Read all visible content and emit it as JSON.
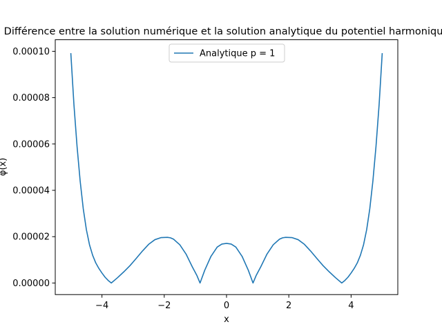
{
  "chart_data": {
    "type": "line",
    "title": "Différence entre la solution numérique et la solution analytique du potentiel harmonique",
    "xlabel": "x",
    "ylabel": "φ(x)",
    "xlim": [
      -5.5,
      5.5
    ],
    "ylim": [
      -5e-06,
      0.000105
    ],
    "xticks": [
      -4,
      -2,
      0,
      2,
      4
    ],
    "xtick_labels": [
      "−4",
      "−2",
      "0",
      "2",
      "4"
    ],
    "yticks": [
      0,
      2e-05,
      4e-05,
      6e-05,
      8e-05,
      0.0001
    ],
    "ytick_labels": [
      "0.00000",
      "0.00002",
      "0.00004",
      "0.00006",
      "0.00008",
      "0.00010"
    ],
    "grid": false,
    "legend_position": "upper center",
    "series": [
      {
        "name": "Analytique p = 1",
        "color": "#1f77b4",
        "x": [
          -5.0,
          -4.9,
          -4.8,
          -4.7,
          -4.6,
          -4.5,
          -4.4,
          -4.3,
          -4.2,
          -4.1,
          -4.0,
          -3.9,
          -3.8,
          -3.7,
          -3.5,
          -3.3,
          -3.1,
          -2.9,
          -2.7,
          -2.5,
          -2.3,
          -2.1,
          -1.9,
          -1.8,
          -1.7,
          -1.5,
          -1.3,
          -1.1,
          -0.95,
          -0.85,
          -0.7,
          -0.5,
          -0.3,
          -0.15,
          0.0,
          0.15,
          0.3,
          0.5,
          0.7,
          0.85,
          0.95,
          1.1,
          1.3,
          1.5,
          1.7,
          1.8,
          1.9,
          2.1,
          2.3,
          2.5,
          2.7,
          2.9,
          3.1,
          3.3,
          3.5,
          3.7,
          3.8,
          3.9,
          4.0,
          4.1,
          4.2,
          4.3,
          4.4,
          4.5,
          4.6,
          4.7,
          4.8,
          4.9,
          5.0
        ],
        "y": [
          9.92e-05,
          7.7e-05,
          5.9e-05,
          4.4e-05,
          3.2e-05,
          2.3e-05,
          1.65e-05,
          1.2e-05,
          8.7e-06,
          6.3e-06,
          4.3e-06,
          2.5e-06,
          1.1e-06,
          0.0,
          2.3e-06,
          4.8e-06,
          7.5e-06,
          1.06e-05,
          1.38e-05,
          1.67e-05,
          1.87e-05,
          1.96e-05,
          1.97e-05,
          1.95e-05,
          1.89e-05,
          1.65e-05,
          1.25e-05,
          7e-06,
          3.2e-06,
          0.0,
          5.5e-06,
          1.15e-05,
          1.55e-05,
          1.68e-05,
          1.71e-05,
          1.68e-05,
          1.55e-05,
          1.15e-05,
          5.5e-06,
          0.0,
          3.2e-06,
          7e-06,
          1.25e-05,
          1.65e-05,
          1.89e-05,
          1.95e-05,
          1.97e-05,
          1.96e-05,
          1.87e-05,
          1.67e-05,
          1.38e-05,
          1.06e-05,
          7.5e-06,
          4.8e-06,
          2.3e-06,
          0.0,
          1.1e-06,
          2.5e-06,
          4.3e-06,
          6.3e-06,
          8.7e-06,
          1.2e-05,
          1.65e-05,
          2.3e-05,
          3.2e-05,
          4.4e-05,
          5.9e-05,
          7.7e-05,
          9.92e-05
        ]
      }
    ]
  }
}
